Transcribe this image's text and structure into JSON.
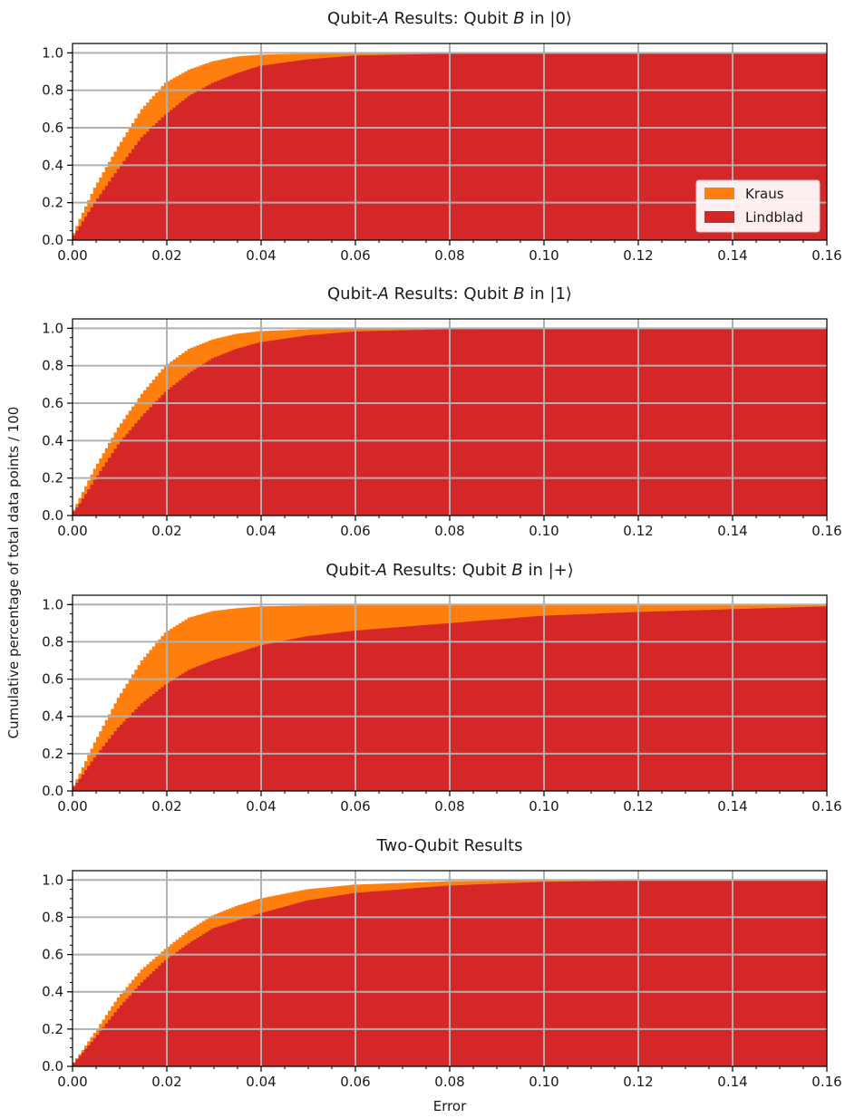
{
  "figure": {
    "ylabel": "Cumulative percentage of total data points / 100",
    "xlabel": "Error"
  },
  "colors": {
    "kraus": "#ff7f0e",
    "lindblad": "#d62728",
    "grid": "#b0b0b0",
    "axis": "#000000"
  },
  "legend": {
    "entries": [
      "Kraus",
      "Lindblad"
    ]
  },
  "chart_data": [
    {
      "type": "area",
      "title_parts": [
        "Qubit-",
        "A",
        " Results: Qubit ",
        "B",
        " in |0⟩"
      ],
      "x_ticks": [
        "0.00",
        "0.02",
        "0.04",
        "0.06",
        "0.08",
        "0.10",
        "0.12",
        "0.14",
        "0.16"
      ],
      "y_ticks": [
        "0.0",
        "0.2",
        "0.4",
        "0.6",
        "0.8",
        "1.0"
      ],
      "xlim": [
        0,
        0.16
      ],
      "ylim": [
        0,
        1.05
      ],
      "grid": true,
      "legend_position": "lower-right",
      "series": [
        {
          "name": "Kraus",
          "x": [
            0,
            0.002,
            0.005,
            0.01,
            0.015,
            0.02,
            0.025,
            0.03,
            0.035,
            0.04,
            0.05,
            0.06,
            0.08,
            0.16
          ],
          "y": [
            0,
            0.12,
            0.28,
            0.5,
            0.7,
            0.84,
            0.91,
            0.955,
            0.98,
            0.99,
            0.996,
            0.998,
            1.0,
            1.0
          ]
        },
        {
          "name": "Lindblad",
          "x": [
            0,
            0.002,
            0.005,
            0.01,
            0.015,
            0.02,
            0.025,
            0.03,
            0.035,
            0.04,
            0.05,
            0.06,
            0.08,
            0.1,
            0.16
          ],
          "y": [
            0,
            0.08,
            0.2,
            0.38,
            0.55,
            0.67,
            0.77,
            0.84,
            0.89,
            0.93,
            0.965,
            0.985,
            0.996,
            0.999,
            1.0
          ]
        }
      ]
    },
    {
      "type": "area",
      "title_parts": [
        "Qubit-",
        "A",
        " Results: Qubit ",
        "B",
        " in |1⟩"
      ],
      "x_ticks": [
        "0.00",
        "0.02",
        "0.04",
        "0.06",
        "0.08",
        "0.10",
        "0.12",
        "0.14",
        "0.16"
      ],
      "y_ticks": [
        "0.0",
        "0.2",
        "0.4",
        "0.6",
        "0.8",
        "1.0"
      ],
      "xlim": [
        0,
        0.16
      ],
      "ylim": [
        0,
        1.05
      ],
      "grid": true,
      "series": [
        {
          "name": "Kraus",
          "x": [
            0,
            0.002,
            0.005,
            0.01,
            0.015,
            0.02,
            0.025,
            0.03,
            0.035,
            0.04,
            0.05,
            0.06,
            0.08,
            0.16
          ],
          "y": [
            0,
            0.1,
            0.25,
            0.47,
            0.65,
            0.8,
            0.89,
            0.94,
            0.97,
            0.985,
            0.994,
            0.998,
            1.0,
            1.0
          ]
        },
        {
          "name": "Lindblad",
          "x": [
            0,
            0.002,
            0.005,
            0.01,
            0.015,
            0.02,
            0.025,
            0.03,
            0.035,
            0.04,
            0.05,
            0.06,
            0.08,
            0.1,
            0.16
          ],
          "y": [
            0,
            0.07,
            0.19,
            0.38,
            0.53,
            0.66,
            0.76,
            0.84,
            0.89,
            0.925,
            0.962,
            0.983,
            0.995,
            0.999,
            1.0
          ]
        }
      ]
    },
    {
      "type": "area",
      "title_parts": [
        "Qubit-",
        "A",
        " Results: Qubit ",
        "B",
        " in |+⟩"
      ],
      "x_ticks": [
        "0.00",
        "0.02",
        "0.04",
        "0.06",
        "0.08",
        "0.10",
        "0.12",
        "0.14",
        "0.16"
      ],
      "y_ticks": [
        "0.0",
        "0.2",
        "0.4",
        "0.6",
        "0.8",
        "1.0"
      ],
      "xlim": [
        0,
        0.16
      ],
      "ylim": [
        0,
        1.05
      ],
      "grid": true,
      "series": [
        {
          "name": "Kraus",
          "x": [
            0,
            0.002,
            0.005,
            0.01,
            0.015,
            0.02,
            0.025,
            0.03,
            0.035,
            0.04,
            0.05,
            0.06,
            0.08,
            0.16
          ],
          "y": [
            0,
            0.1,
            0.26,
            0.5,
            0.7,
            0.85,
            0.93,
            0.965,
            0.98,
            0.99,
            0.995,
            0.997,
            0.999,
            1.0
          ]
        },
        {
          "name": "Lindblad",
          "x": [
            0,
            0.002,
            0.005,
            0.01,
            0.015,
            0.02,
            0.025,
            0.03,
            0.035,
            0.04,
            0.05,
            0.06,
            0.08,
            0.1,
            0.12,
            0.14,
            0.16
          ],
          "y": [
            0,
            0.07,
            0.18,
            0.34,
            0.47,
            0.57,
            0.65,
            0.7,
            0.74,
            0.78,
            0.83,
            0.86,
            0.9,
            0.94,
            0.96,
            0.975,
            0.99
          ]
        }
      ]
    },
    {
      "type": "area",
      "title_parts": [
        "Two-Qubit Results"
      ],
      "x_ticks": [
        "0.00",
        "0.02",
        "0.04",
        "0.06",
        "0.08",
        "0.10",
        "0.12",
        "0.14",
        "0.16"
      ],
      "y_ticks": [
        "0.0",
        "0.2",
        "0.4",
        "0.6",
        "0.8",
        "1.0"
      ],
      "xlim": [
        0,
        0.16
      ],
      "ylim": [
        0,
        1.05
      ],
      "grid": true,
      "series": [
        {
          "name": "Kraus",
          "x": [
            0,
            0.002,
            0.005,
            0.01,
            0.015,
            0.02,
            0.025,
            0.03,
            0.035,
            0.04,
            0.05,
            0.06,
            0.08,
            0.1,
            0.16
          ],
          "y": [
            0,
            0.07,
            0.18,
            0.37,
            0.52,
            0.63,
            0.73,
            0.81,
            0.86,
            0.9,
            0.95,
            0.975,
            0.993,
            0.999,
            1.0
          ]
        },
        {
          "name": "Lindblad",
          "x": [
            0,
            0.002,
            0.005,
            0.01,
            0.015,
            0.02,
            0.025,
            0.03,
            0.035,
            0.04,
            0.05,
            0.06,
            0.08,
            0.1,
            0.12,
            0.16
          ],
          "y": [
            0,
            0.06,
            0.15,
            0.31,
            0.45,
            0.57,
            0.66,
            0.74,
            0.78,
            0.82,
            0.89,
            0.93,
            0.97,
            0.99,
            0.997,
            1.0
          ]
        }
      ]
    }
  ]
}
